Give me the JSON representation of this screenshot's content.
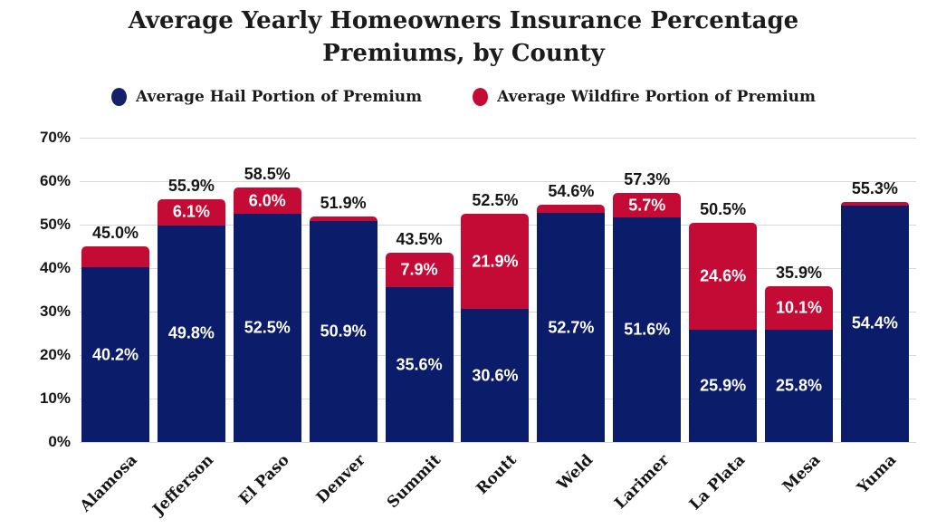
{
  "title": {
    "line1": "Average Yearly Homeowners Insurance Percentage",
    "line2": "Premiums, by County"
  },
  "legend": [
    {
      "key": "hail",
      "label": "Average Hail Portion of Premium",
      "color": "#13216b"
    },
    {
      "key": "wildfire",
      "label": "Average Wildfire Portion of Premium",
      "color": "#c40b35"
    }
  ],
  "axis": {
    "y_ticks": [
      "70%",
      "60%",
      "50%",
      "40%",
      "30%",
      "20%",
      "10%",
      "0%"
    ],
    "grid_color": "#d8d8d8"
  },
  "chart_data": {
    "type": "bar",
    "stacked": true,
    "title": "Average Yearly Homeowners Insurance Percentage Premiums, by County",
    "categories": [
      "Alamosa",
      "Jefferson",
      "El Paso",
      "Denver",
      "Summit",
      "Routt",
      "Weld",
      "Larimer",
      "La Plata",
      "Mesa",
      "Yuma"
    ],
    "series": [
      {
        "name": "Average Hail Portion of Premium",
        "color": "#0b1c6a",
        "values": [
          40.2,
          49.8,
          52.5,
          50.9,
          35.6,
          30.6,
          52.7,
          51.6,
          25.9,
          25.8,
          54.4
        ],
        "labels_visible": [
          true,
          true,
          true,
          true,
          true,
          true,
          true,
          true,
          true,
          true,
          true
        ]
      },
      {
        "name": "Average Wildfire Portion of Premium",
        "color": "#c40b35",
        "values": [
          4.8,
          6.1,
          6.0,
          1.0,
          7.9,
          21.9,
          1.9,
          5.7,
          24.6,
          10.1,
          0.9
        ],
        "labels_visible": [
          false,
          true,
          true,
          false,
          true,
          true,
          false,
          true,
          true,
          true,
          false
        ]
      }
    ],
    "totals": [
      45.0,
      55.9,
      58.5,
      51.9,
      43.5,
      52.5,
      54.6,
      57.3,
      50.5,
      35.9,
      55.3
    ],
    "xlabel": "",
    "ylabel": "",
    "ylim": [
      0,
      70
    ],
    "grid": true,
    "legend_position": "top"
  }
}
